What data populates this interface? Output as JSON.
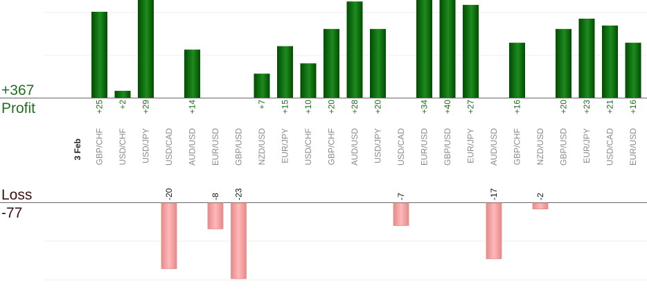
{
  "labels": {
    "profit_total": "+367",
    "profit_caption": "Profit",
    "loss_caption": "Loss",
    "loss_total": "-77",
    "date": "3 Feb"
  },
  "colors": {
    "profit_dark": "#004d00",
    "profit_light": "#1e8a1e",
    "profit_text": "#1a6b1a",
    "loss_fill": "#ffb8b8",
    "loss_edge": "#e58a8a",
    "grid": "#eeeeee",
    "axis": "#666666"
  },
  "chart_data": {
    "type": "bar",
    "categories": [
      "GBP/CHF",
      "USD/CHF",
      "USD/JPY",
      "USD/CAD",
      "AUD/USD",
      "EUR/USD",
      "GBP/USD",
      "NZD/USD",
      "EUR/JPY",
      "USD/CHF",
      "GBP/CHF",
      "AUD/USD",
      "USD/JPY",
      "USD/CAD",
      "EUR/USD",
      "GBP/USD",
      "EUR/JPY",
      "AUD/USD",
      "GBP/CHF",
      "NZD/USD",
      "GBP/USD",
      "EUR/JPY",
      "USD/CAD",
      "EUR/USD"
    ],
    "series": [
      {
        "values": [
          25,
          2,
          29,
          null,
          14,
          null,
          null,
          7,
          15,
          10,
          20,
          28,
          20,
          null,
          34,
          40,
          27,
          null,
          16,
          null,
          20,
          23,
          21,
          16
        ]
      },
      {
        "values": [
          null,
          null,
          null,
          -20,
          null,
          -8,
          -23,
          null,
          null,
          null,
          null,
          null,
          null,
          -7,
          null,
          null,
          null,
          -17,
          null,
          -2,
          null,
          null,
          null,
          null
        ]
      }
    ],
    "profit_ylim": [
      0,
      25
    ],
    "loss_ylim": [
      -24,
      0
    ],
    "grid": true
  }
}
